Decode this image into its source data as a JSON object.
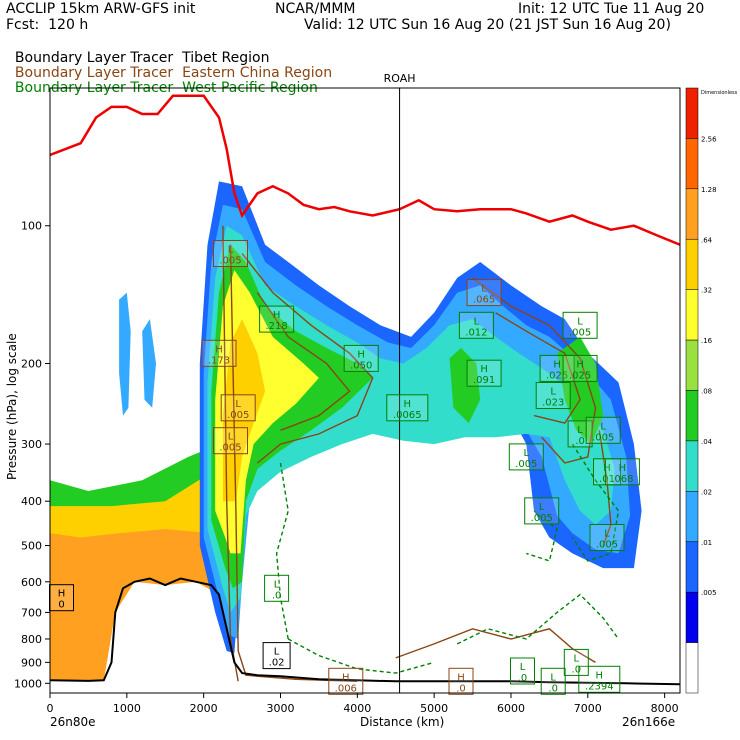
{
  "header": {
    "left_line1": "ACCLIP 15km ARW-GFS init",
    "center_line1": "NCAR/MMM",
    "right_line1": "Init: 12 UTC Tue 11 Aug 20",
    "left_line2": "Fcst:  120 h",
    "right_line2": "Valid: 12 UTC Sun 16 Aug 20 (21 JST Sun 16 Aug 20)",
    "legend": [
      {
        "label": "Boundary Layer Tracer",
        "region": "Tibet Region",
        "color": "#000000"
      },
      {
        "label": "Boundary Layer Tracer",
        "region": "Eastern China Region",
        "color": "#8b4513"
      },
      {
        "label": "Boundary Layer Tracer",
        "region": "West Pacific Region",
        "color": "#008000"
      }
    ]
  },
  "chart_data": {
    "type": "cross-section",
    "xlabel": "Distance (km)",
    "ylabel": "Pressure (hPa), log scale",
    "x_ticks": [
      0,
      1000,
      2000,
      3000,
      4000,
      5000,
      6000,
      7000,
      8000
    ],
    "xlim": [
      0,
      8200
    ],
    "y_ticks": [
      100,
      200,
      300,
      400,
      500,
      600,
      700,
      800,
      900,
      1000
    ],
    "ylim": [
      50,
      1050
    ],
    "y_scale": "log",
    "left_endpoint": "26n80e",
    "right_endpoint": "26n166e",
    "marker": {
      "label": "ROAH",
      "x": 4550
    },
    "colorbar": {
      "levels": [
        "Dimensionless",
        "2.56",
        "1.28",
        ".64",
        ".32",
        ".16",
        ".08",
        ".04",
        ".02",
        ".01",
        ".005"
      ],
      "colors": [
        "#ee2200",
        "#ff6600",
        "#ffa020",
        "#ffd000",
        "#ffff30",
        "#99e040",
        "#22cc22",
        "#33ddcc",
        "#33aaff",
        "#1a66ff",
        "#0000ee",
        "#ffffff"
      ]
    },
    "tropopause": {
      "name": "",
      "color": "#ee0000",
      "points": [
        [
          0,
          70
        ],
        [
          200,
          68
        ],
        [
          400,
          66
        ],
        [
          600,
          58
        ],
        [
          800,
          55
        ],
        [
          1000,
          55
        ],
        [
          1200,
          57
        ],
        [
          1400,
          57
        ],
        [
          1600,
          52
        ],
        [
          2000,
          52
        ],
        [
          2200,
          58
        ],
        [
          2300,
          68
        ],
        [
          2400,
          85
        ],
        [
          2500,
          95
        ],
        [
          2700,
          85
        ],
        [
          2900,
          82
        ],
        [
          3100,
          85
        ],
        [
          3300,
          90
        ],
        [
          3500,
          92
        ],
        [
          3700,
          91
        ],
        [
          3900,
          93
        ],
        [
          4200,
          95
        ],
        [
          4550,
          92
        ],
        [
          4800,
          88
        ],
        [
          5000,
          92
        ],
        [
          5300,
          93
        ],
        [
          5600,
          92
        ],
        [
          6000,
          92
        ],
        [
          6200,
          94
        ],
        [
          6500,
          98
        ],
        [
          6800,
          95
        ],
        [
          7000,
          98
        ],
        [
          7300,
          102
        ],
        [
          7600,
          100
        ],
        [
          7900,
          105
        ],
        [
          8200,
          110
        ]
      ]
    },
    "terrain": {
      "color": "#000000",
      "points": [
        [
          0,
          985
        ],
        [
          500,
          988
        ],
        [
          700,
          985
        ],
        [
          800,
          900
        ],
        [
          850,
          700
        ],
        [
          950,
          620
        ],
        [
          1100,
          600
        ],
        [
          1300,
          590
        ],
        [
          1500,
          610
        ],
        [
          1700,
          590
        ],
        [
          1900,
          600
        ],
        [
          2100,
          610
        ],
        [
          2200,
          640
        ],
        [
          2300,
          760
        ],
        [
          2400,
          900
        ],
        [
          2500,
          950
        ],
        [
          2700,
          960
        ],
        [
          3000,
          965
        ],
        [
          3500,
          980
        ],
        [
          4000,
          985
        ],
        [
          4500,
          990
        ],
        [
          5000,
          990
        ],
        [
          5500,
          990
        ],
        [
          6000,
          990
        ],
        [
          6500,
          995
        ],
        [
          7000,
          997
        ],
        [
          7500,
          1000
        ],
        [
          8200,
          1005
        ]
      ]
    },
    "labels": [
      {
        "kind": "H",
        "value": "0",
        "x": 150,
        "p": 650,
        "color": "#000000"
      },
      {
        "kind": "L",
        "value": ".005",
        "x": 2350,
        "p": 115,
        "color": "#8b4513"
      },
      {
        "kind": "H",
        "value": ".218",
        "x": 2950,
        "p": 160,
        "color": "#008000"
      },
      {
        "kind": "H",
        "value": ".173",
        "x": 2200,
        "p": 190,
        "color": "#8b4513"
      },
      {
        "kind": "H",
        "value": ".050",
        "x": 4050,
        "p": 195,
        "color": "#008000"
      },
      {
        "kind": "L",
        "value": ".005",
        "x": 2450,
        "p": 250,
        "color": "#8b4513"
      },
      {
        "kind": "H",
        "value": ".0065",
        "x": 4650,
        "p": 250,
        "color": "#008000"
      },
      {
        "kind": "L",
        "value": ".005",
        "x": 2350,
        "p": 295,
        "color": "#8b4513"
      },
      {
        "kind": "L",
        "value": ".0",
        "x": 2950,
        "p": 620,
        "color": "#008000"
      },
      {
        "kind": "L",
        "value": ".012",
        "x": 5550,
        "p": 165,
        "color": "#008000"
      },
      {
        "kind": "L",
        "value": ".065",
        "x": 5650,
        "p": 140,
        "color": "#8b4513"
      },
      {
        "kind": "H",
        "value": ".091",
        "x": 5650,
        "p": 210,
        "color": "#008000"
      },
      {
        "kind": "L",
        "value": ".005",
        "x": 6900,
        "p": 165,
        "color": "#008000"
      },
      {
        "kind": "H",
        "value": ".025",
        "x": 6600,
        "p": 205,
        "color": "#008000"
      },
      {
        "kind": "H",
        "value": ".025",
        "x": 6900,
        "p": 205,
        "color": "#008000"
      },
      {
        "kind": "L",
        "value": ".023",
        "x": 6550,
        "p": 235,
        "color": "#008000"
      },
      {
        "kind": "L",
        "value": ".0",
        "x": 6900,
        "p": 285,
        "color": "#008000"
      },
      {
        "kind": "L",
        "value": ".005",
        "x": 7200,
        "p": 280,
        "color": "#008000"
      },
      {
        "kind": "L",
        "value": ".005",
        "x": 6200,
        "p": 320,
        "color": "#008000"
      },
      {
        "kind": "H",
        "value": ".01",
        "x": 7250,
        "p": 345,
        "color": "#008000"
      },
      {
        "kind": "H",
        "value": ".068",
        "x": 7450,
        "p": 345,
        "color": "#008000"
      },
      {
        "kind": "L",
        "value": ".005",
        "x": 6400,
        "p": 420,
        "color": "#008000"
      },
      {
        "kind": "L",
        "value": ".005",
        "x": 7250,
        "p": 480,
        "color": "#008000"
      },
      {
        "kind": "L",
        "value": ".02",
        "x": 2950,
        "p": 870,
        "color": "#000000"
      },
      {
        "kind": "H",
        "value": ".006",
        "x": 3850,
        "p": 990,
        "color": "#8b4513"
      },
      {
        "kind": "H",
        "value": ".0",
        "x": 5350,
        "p": 990,
        "color": "#8b4513"
      },
      {
        "kind": "L",
        "value": ".0",
        "x": 6150,
        "p": 940,
        "color": "#008000"
      },
      {
        "kind": "L",
        "value": ".0",
        "x": 6550,
        "p": 990,
        "color": "#008000"
      },
      {
        "kind": "H",
        "value": ".2394",
        "x": 7150,
        "p": 980,
        "color": "#008000"
      },
      {
        "kind": "L",
        "value": ".0",
        "x": 6850,
        "p": 900,
        "color": "#008000"
      }
    ]
  }
}
